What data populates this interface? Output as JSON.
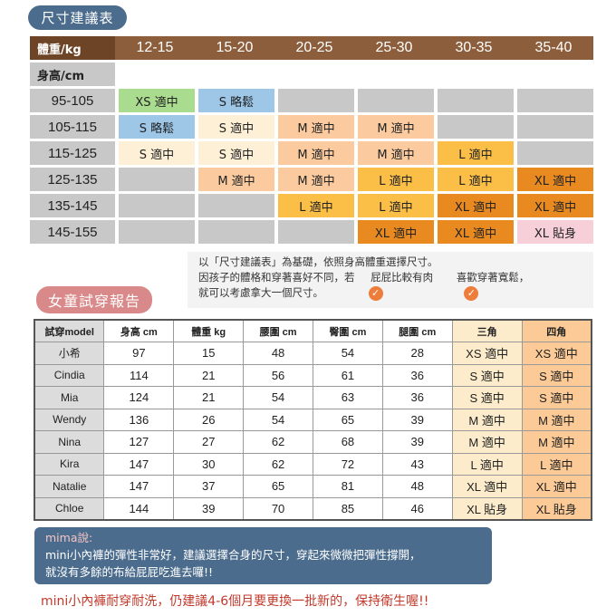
{
  "title": "尺寸建議表",
  "size_chart": {
    "weight_label": "體重/kg",
    "height_label": "身高/cm",
    "weights": [
      "12-15",
      "15-20",
      "20-25",
      "25-30",
      "30-35",
      "35-40"
    ],
    "rows": [
      {
        "height": "95-105",
        "cells": [
          "XS 適中",
          "S 略鬆",
          "",
          "",
          "",
          ""
        ]
      },
      {
        "height": "105-115",
        "cells": [
          "S 略鬆",
          "S 適中",
          "M 適中",
          "M 適中",
          "",
          ""
        ]
      },
      {
        "height": "115-125",
        "cells": [
          "S 適中",
          "S 適中",
          "M 適中",
          "M 適中",
          "L 適中",
          ""
        ]
      },
      {
        "height": "125-135",
        "cells": [
          "",
          "M 適中",
          "M 適中",
          "L 適中",
          "L 適中",
          "XL 適中"
        ]
      },
      {
        "height": "135-145",
        "cells": [
          "",
          "",
          "L 適中",
          "L 適中",
          "XL 適中",
          "XL 適中"
        ]
      },
      {
        "height": "145-155",
        "cells": [
          "",
          "",
          "",
          "XL 適中",
          "XL 適中",
          "XL 貼身"
        ]
      }
    ],
    "colors": {
      "XS 適中": "#a9dc8e",
      "S 略鬆": "#9dc6e7",
      "S 適中": "#fdf0d6",
      "M 適中": "#fbcb9f",
      "L 適中": "#fbbf47",
      "XL 適中": "#e98a20",
      "XL 貼身": "#f6cfd8",
      "": "#c8c8c8"
    }
  },
  "note": {
    "line1": "以「尺寸建議表」為基礎，依照身高體重選擇尺寸。",
    "line2a": "因孩子的體格和穿著喜好不同，若",
    "line2b": "屁屁比較有肉",
    "line2c": "喜歡穿著寬鬆，",
    "line3": "就可以考慮拿大一個尺寸。"
  },
  "report": {
    "title": "女童試穿報告",
    "headers": [
      "試穿model",
      "身高 cm",
      "體重 kg",
      "腰圍 cm",
      "臀圍 cm",
      "腿圍 cm",
      "三角",
      "四角"
    ],
    "rows": [
      [
        "小希",
        "97",
        "15",
        "48",
        "54",
        "28",
        "XS 適中",
        "XS 適中"
      ],
      [
        "Cindia",
        "114",
        "21",
        "56",
        "61",
        "36",
        "S 適中",
        "S 適中"
      ],
      [
        "Mia",
        "124",
        "21",
        "54",
        "63",
        "36",
        "S 適中",
        "S 適中"
      ],
      [
        "Wendy",
        "136",
        "26",
        "54",
        "65",
        "39",
        "M 適中",
        "M 適中"
      ],
      [
        "Nina",
        "127",
        "27",
        "62",
        "68",
        "39",
        "M 適中",
        "M 適中"
      ],
      [
        "Kira",
        "147",
        "30",
        "62",
        "72",
        "43",
        "L 適中",
        "L 適中"
      ],
      [
        "Natalie",
        "147",
        "37",
        "65",
        "81",
        "48",
        "XL 適中",
        "XL 適中"
      ],
      [
        "Chloe",
        "144",
        "39",
        "70",
        "85",
        "46",
        "XL 貼身",
        "XL 貼身"
      ]
    ]
  },
  "mima": {
    "who": "mima說:",
    "line1": "mini小內褲的彈性非常好，建議選擇合身的尺寸，穿起來微微把彈性撐開，",
    "line2": "就沒有多餘的布給屁屁吃進去囉!!"
  },
  "bottom": "mini小內褲耐穿耐洗，仍建議4-6個月要更換一批新的，保持衛生喔!!"
}
